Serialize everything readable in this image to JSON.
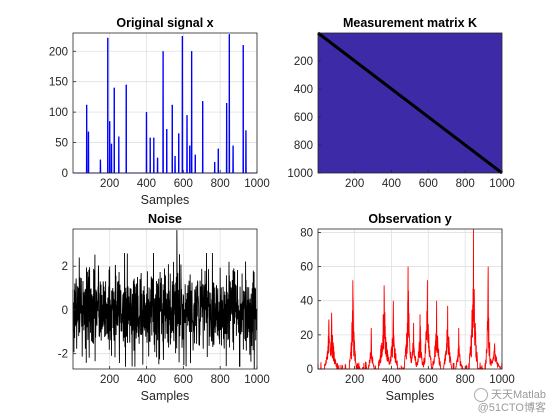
{
  "chart_data": [
    {
      "type": "line",
      "title": "Original signal x",
      "xlabel": "Samples",
      "ylabel": "",
      "xlim": [
        1,
        1000
      ],
      "ylim": [
        0,
        230
      ],
      "xticks": [
        200,
        400,
        600,
        800,
        1000
      ],
      "yticks": [
        0,
        50,
        100,
        150,
        200
      ],
      "grid": true,
      "color": "#0000ff",
      "spikes": [
        {
          "x": 75,
          "y": 112
        },
        {
          "x": 85,
          "y": 68
        },
        {
          "x": 150,
          "y": 22
        },
        {
          "x": 190,
          "y": 222
        },
        {
          "x": 200,
          "y": 85
        },
        {
          "x": 210,
          "y": 48
        },
        {
          "x": 225,
          "y": 140
        },
        {
          "x": 250,
          "y": 60
        },
        {
          "x": 290,
          "y": 145
        },
        {
          "x": 400,
          "y": 100
        },
        {
          "x": 420,
          "y": 58
        },
        {
          "x": 440,
          "y": 58
        },
        {
          "x": 460,
          "y": 25
        },
        {
          "x": 490,
          "y": 200
        },
        {
          "x": 510,
          "y": 72
        },
        {
          "x": 540,
          "y": 112
        },
        {
          "x": 555,
          "y": 28
        },
        {
          "x": 575,
          "y": 65
        },
        {
          "x": 595,
          "y": 225
        },
        {
          "x": 620,
          "y": 95
        },
        {
          "x": 635,
          "y": 45
        },
        {
          "x": 645,
          "y": 200
        },
        {
          "x": 665,
          "y": 30
        },
        {
          "x": 705,
          "y": 118
        },
        {
          "x": 770,
          "y": 18
        },
        {
          "x": 790,
          "y": 40
        },
        {
          "x": 835,
          "y": 115
        },
        {
          "x": 850,
          "y": 228
        },
        {
          "x": 870,
          "y": 45
        },
        {
          "x": 925,
          "y": 210
        },
        {
          "x": 940,
          "y": 70
        }
      ]
    },
    {
      "type": "heatmap",
      "title": "Measurement matrix K",
      "xlabel": "",
      "ylabel": "",
      "xlim": [
        1,
        1000
      ],
      "ylim": [
        1,
        1000
      ],
      "xticks": [
        200,
        400,
        600,
        800,
        1000
      ],
      "yticks": [
        200,
        400,
        600,
        800,
        1000
      ],
      "y_reversed": true,
      "background_color": "#3d2aa6",
      "diagonal_color": "#000000",
      "matrix": "identity 1000x1000"
    },
    {
      "type": "line",
      "title": "Noise",
      "xlabel": "Samples",
      "ylabel": "",
      "xlim": [
        1,
        1000
      ],
      "ylim": [
        -2.7,
        3.7
      ],
      "xticks": [
        200,
        400,
        600,
        800,
        1000
      ],
      "yticks": [
        -2,
        0,
        2
      ],
      "grid": true,
      "color": "#000000",
      "distribution": "gaussian white noise, mean 0, std 1, 1000 samples",
      "peaks": [
        {
          "x": 565,
          "y": 3.65
        },
        {
          "x": 985,
          "y": -2.7
        },
        {
          "x": 905,
          "y": -2.6
        },
        {
          "x": 35,
          "y": 2.4
        },
        {
          "x": 380,
          "y": -2.5
        }
      ]
    },
    {
      "type": "line",
      "title": "Observation y",
      "xlabel": "Samples",
      "ylabel": "",
      "xlim": [
        1,
        1000
      ],
      "ylim": [
        0,
        82
      ],
      "xticks": [
        200,
        400,
        600,
        800,
        1000
      ],
      "yticks": [
        0,
        20,
        40,
        60,
        80
      ],
      "grid": true,
      "color": "#ff0000",
      "peaks": [
        {
          "x": 60,
          "y": 29
        },
        {
          "x": 75,
          "y": 33
        },
        {
          "x": 190,
          "y": 52
        },
        {
          "x": 290,
          "y": 24
        },
        {
          "x": 360,
          "y": 49
        },
        {
          "x": 410,
          "y": 40
        },
        {
          "x": 490,
          "y": 60
        },
        {
          "x": 520,
          "y": 27
        },
        {
          "x": 555,
          "y": 32
        },
        {
          "x": 595,
          "y": 52
        },
        {
          "x": 645,
          "y": 40
        },
        {
          "x": 705,
          "y": 37
        },
        {
          "x": 765,
          "y": 24
        },
        {
          "x": 845,
          "y": 82
        },
        {
          "x": 925,
          "y": 60
        },
        {
          "x": 960,
          "y": 15
        }
      ]
    }
  ],
  "watermark": {
    "line1": "天天Matlab",
    "line2": "@51CTO博客"
  }
}
